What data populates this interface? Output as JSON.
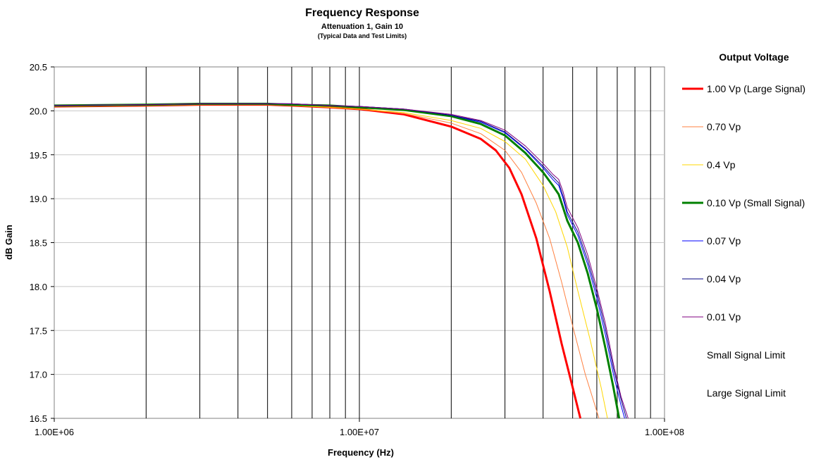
{
  "chart_data": {
    "type": "line",
    "title": "Frequency Response",
    "subtitle": "Attenuation 1, Gain 10",
    "note": "(Typical Data and Test Limits)",
    "xlabel": "Frequency (Hz)",
    "ylabel": "dB Gain",
    "x_scale": "log",
    "xlim": [
      1000000,
      100000000
    ],
    "ylim": [
      16.5,
      20.5
    ],
    "x_ticks": [
      "1.00E+06",
      "1.00E+07",
      "1.00E+08"
    ],
    "y_ticks": [
      "20.5",
      "20.0",
      "19.5",
      "19.0",
      "18.5",
      "18.0",
      "17.5",
      "17.0",
      "16.5"
    ],
    "legend_title": "Output Voltage",
    "legend_position": "right",
    "grid": "vertical log decades and horizontal major",
    "series": [
      {
        "name": "1.00 Vp (Large Signal)",
        "color": "#ff0000",
        "x": [
          1000000,
          2000000,
          3000000,
          4000000,
          5000000,
          6000000,
          8000000,
          10000000,
          14000000,
          20000000,
          25000000,
          28000000,
          31000000,
          34000000,
          38000000,
          42000000,
          46000000,
          50000000,
          53000000
        ],
        "y": [
          20.05,
          20.06,
          20.07,
          20.07,
          20.07,
          20.06,
          20.04,
          20.02,
          19.96,
          19.82,
          19.68,
          19.55,
          19.35,
          19.05,
          18.55,
          17.95,
          17.35,
          16.85,
          16.5
        ]
      },
      {
        "name": "0.70 Vp",
        "color": "#ff8040",
        "x": [
          1000000,
          2000000,
          3000000,
          4000000,
          5000000,
          6000000,
          8000000,
          10000000,
          14000000,
          20000000,
          25000000,
          30000000,
          34000000,
          38000000,
          42000000,
          46000000,
          50000000,
          55000000,
          61000000
        ],
        "y": [
          20.05,
          20.06,
          20.07,
          20.07,
          20.07,
          20.06,
          20.04,
          20.02,
          19.97,
          19.86,
          19.74,
          19.55,
          19.3,
          18.95,
          18.55,
          18.05,
          17.55,
          17.0,
          16.5
        ]
      },
      {
        "name": "0.4 Vp",
        "color": "#ffd700",
        "x": [
          1000000,
          2000000,
          3000000,
          4000000,
          5000000,
          6000000,
          8000000,
          10000000,
          14000000,
          20000000,
          25000000,
          30000000,
          35000000,
          40000000,
          44000000,
          48000000,
          52000000,
          57000000,
          62000000,
          65000000
        ],
        "y": [
          20.05,
          20.06,
          20.07,
          20.07,
          20.07,
          20.06,
          20.04,
          20.02,
          19.98,
          19.89,
          19.8,
          19.65,
          19.45,
          19.15,
          18.85,
          18.45,
          17.95,
          17.4,
          16.85,
          16.5
        ]
      },
      {
        "name": "0.10 Vp (Small Signal)",
        "color": "#008000",
        "x": [
          1000000,
          2000000,
          3000000,
          4000000,
          5000000,
          6000000,
          8000000,
          10000000,
          14000000,
          20000000,
          25000000,
          30000000,
          35000000,
          40000000,
          43000000,
          45000000,
          46500000,
          48000000,
          52000000,
          56000000,
          60000000,
          64000000,
          68000000,
          71000000
        ],
        "y": [
          20.06,
          20.07,
          20.08,
          20.08,
          20.08,
          20.07,
          20.06,
          20.04,
          20.01,
          19.94,
          19.85,
          19.72,
          19.52,
          19.3,
          19.15,
          19.05,
          18.9,
          18.75,
          18.5,
          18.15,
          17.75,
          17.3,
          16.85,
          16.5
        ]
      },
      {
        "name": "0.07 Vp",
        "color": "#0000ff",
        "x": [
          1000000,
          2000000,
          3000000,
          4000000,
          5000000,
          6000000,
          8000000,
          10000000,
          14000000,
          20000000,
          25000000,
          30000000,
          35000000,
          40000000,
          43000000,
          45000000,
          46500000,
          48000000,
          52000000,
          56000000,
          60000000,
          64000000,
          68000000,
          72000000,
          74000000
        ],
        "y": [
          20.06,
          20.07,
          20.08,
          20.08,
          20.08,
          20.08,
          20.06,
          20.05,
          20.02,
          19.95,
          19.87,
          19.75,
          19.56,
          19.35,
          19.22,
          19.15,
          19.0,
          18.82,
          18.58,
          18.25,
          17.87,
          17.45,
          17.0,
          16.65,
          16.5
        ]
      },
      {
        "name": "0.04 Vp",
        "color": "#000080",
        "x": [
          1000000,
          2000000,
          3000000,
          4000000,
          5000000,
          6000000,
          8000000,
          10000000,
          14000000,
          20000000,
          25000000,
          30000000,
          35000000,
          40000000,
          43000000,
          45000000,
          46500000,
          48000000,
          52000000,
          56000000,
          60000000,
          64000000,
          68000000,
          72000000,
          75000000
        ],
        "y": [
          20.06,
          20.07,
          20.08,
          20.08,
          20.08,
          20.08,
          20.06,
          20.05,
          20.02,
          19.95,
          19.88,
          19.76,
          19.57,
          19.37,
          19.25,
          19.18,
          19.03,
          18.85,
          18.62,
          18.3,
          17.93,
          17.52,
          17.07,
          16.72,
          16.5
        ]
      },
      {
        "name": "0.01 Vp",
        "color": "#800080",
        "x": [
          1000000,
          2000000,
          3000000,
          4000000,
          5000000,
          6000000,
          8000000,
          10000000,
          14000000,
          20000000,
          25000000,
          30000000,
          35000000,
          40000000,
          43000000,
          45000000,
          46500000,
          48000000,
          52000000,
          56000000,
          60000000,
          64000000,
          68000000,
          72000000,
          76000000
        ],
        "y": [
          20.06,
          20.07,
          20.08,
          20.08,
          20.08,
          20.08,
          20.06,
          20.05,
          20.02,
          19.96,
          19.89,
          19.78,
          19.6,
          19.4,
          19.28,
          19.22,
          19.08,
          18.9,
          18.67,
          18.36,
          17.98,
          17.58,
          17.12,
          16.75,
          16.5
        ]
      },
      {
        "name": "Small Signal Limit",
        "color": "none",
        "x": [],
        "y": []
      },
      {
        "name": "Large Signal Limit",
        "color": "none",
        "x": [],
        "y": []
      }
    ]
  }
}
